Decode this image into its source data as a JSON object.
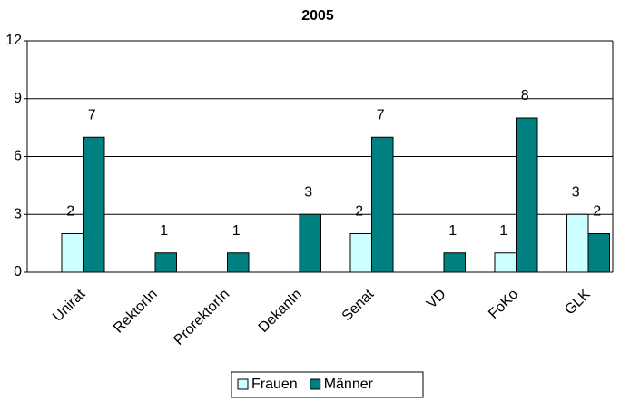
{
  "chart_data": {
    "type": "bar",
    "title": "2005",
    "categories": [
      "Unirat",
      "RektorIn",
      "ProrektorIn",
      "DekanIn",
      "Senat",
      "VD",
      "FoKo",
      "GLK"
    ],
    "series": [
      {
        "name": "Frauen",
        "color": "#ccffff",
        "values": [
          2,
          0,
          0,
          0,
          2,
          0,
          1,
          3
        ],
        "value_labels": [
          "2",
          null,
          null,
          null,
          "2",
          null,
          "1",
          "3"
        ]
      },
      {
        "name": "Männer",
        "color": "#008080",
        "values": [
          7,
          1,
          1,
          3,
          7,
          1,
          8,
          2
        ]
      }
    ],
    "ylim": [
      0,
      12
    ],
    "yticks": [
      0,
      3,
      6,
      9,
      12
    ],
    "grid": true,
    "legend": "bottom"
  }
}
